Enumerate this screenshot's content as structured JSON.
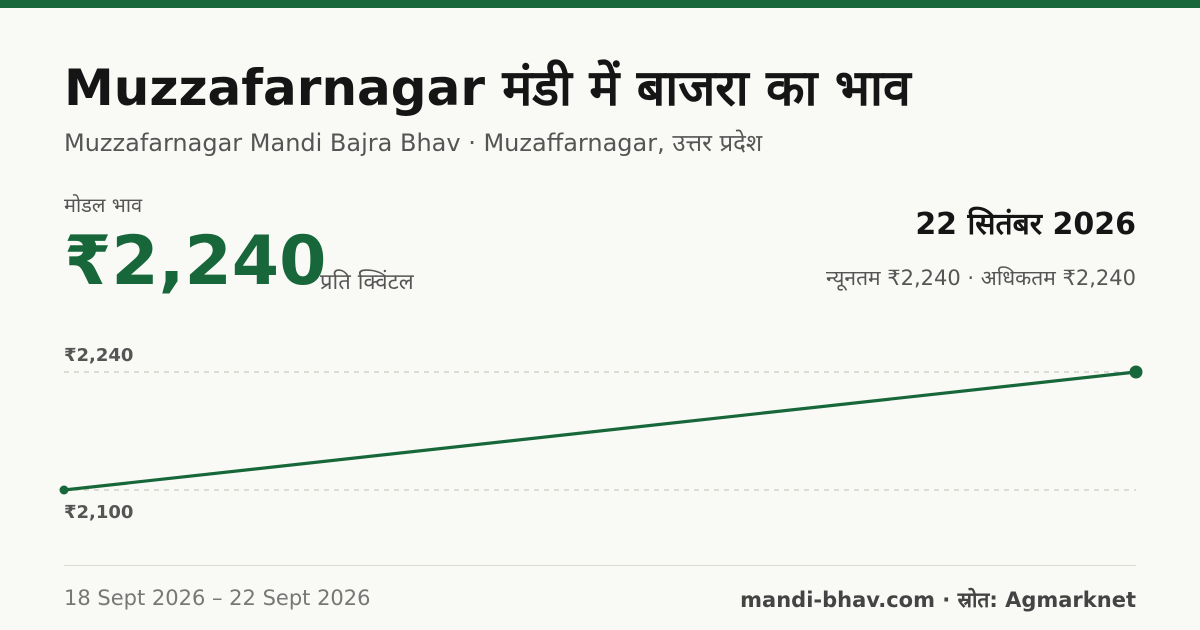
{
  "title": "Muzzafarnagar मंडी में बाजरा का भाव",
  "subtitle": "Muzzafarnagar Mandi Bajra Bhav · Muzaffarnagar, उत्तर प्रदेश",
  "modal_label": "मोडल भाव",
  "modal_price": "₹2,240",
  "unit": "प्रति क्विंटल",
  "date": "22 सितंबर 2026",
  "min_max": "न्यूनतम ₹2,240 · अधिकतम ₹2,240",
  "footer": {
    "date_range": "18 Sept 2026 – 22 Sept 2026",
    "source": "mandi-bhav.com · स्रोत: Agmarknet"
  },
  "colors": {
    "accent": "#17673a",
    "background": "#f9faf6"
  },
  "chart_data": {
    "type": "line",
    "x": [
      "18 Sept 2026",
      "22 Sept 2026"
    ],
    "series": [
      {
        "values": [
          2100,
          2240
        ]
      }
    ],
    "y_labels": [
      "₹2,240",
      "₹2,100"
    ],
    "ylim": [
      2100,
      2240
    ],
    "grid": true
  }
}
